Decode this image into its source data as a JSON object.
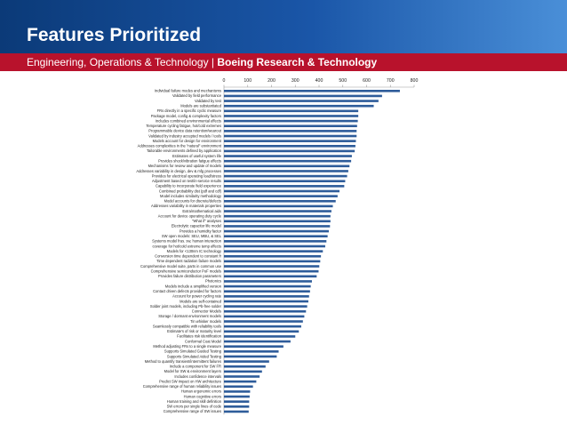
{
  "header": {
    "title": "Features Prioritized",
    "subtitle_prefix": "Engineering, Operations & Technology | ",
    "subtitle_bold": "Boeing Research & Technology"
  },
  "colors": {
    "bar": "#2e5c9a",
    "header_band": "#1a56a8",
    "subtitle_band": "#b8122c"
  },
  "chart_data": {
    "type": "bar",
    "orientation": "horizontal",
    "xlim": [
      0,
      800
    ],
    "x_ticks": [
      0,
      100,
      200,
      300,
      400,
      500,
      600,
      700,
      800
    ],
    "x_axis_position": "top",
    "grid": false,
    "legend": "none",
    "categories": [
      "Individual failure modes and mechanisms",
      "Validated by field performance",
      "Validated by test",
      "Models are substantiated",
      "FRs directly in a specific cyclic measure",
      "Package model, config & complexity factors",
      "Includes combined environmental effects",
      "Temperature cycling fatigue, hot/cold extremes",
      "Programmable device data retention/wearout",
      "Validated by industry accepted models / tools",
      "Models account for design for environment",
      "Addresses complexities in the \"natural\" environment",
      "Tailorable environments defined by application",
      "Estimates of useful system life",
      "Provides shock/vibration fatigue effects",
      "Mechanisms for review and update of models",
      "Addresses variability in design, dev & mfg processes",
      "Provides for electrical operating load/stress",
      "Adjustment based on test/in-service results",
      "Capability to incorporate field experience",
      "Combined probability dist (pdf and cdf)",
      "Model includes similarity methodology",
      "Model accounts for discrete/defects",
      "Addresses variability in materials properties",
      "Extra/mathematical aids",
      "Account for device operating duty cycle",
      "\"What if\" analyses",
      "Electrolytic capacitor life model",
      "Provides a humidity factor",
      "SW open models: SEU, MBU, & SEL",
      "Systems model fras. sw, human interaction",
      "coverage for hot/cold extreme temp effects",
      "Models for <130nm IC technology",
      "Conversion time dependent to constant fr",
      "Time dependent radiation failure models",
      "Comprehensive model suite, parts in common use",
      "Comprehensive semiconductor PoF models",
      "Provides failure distribution parameters",
      "Photonics",
      "Models include a simplified version",
      "Contact driven defects provided for factors",
      "Account for power cycling rate",
      "Models are self-contained",
      "Solder joint models, including Pb-free solder",
      "Connector Models",
      "Storage / dormant environment models",
      "Tin whisker models",
      "Seamlessly compatible with reliability tools",
      "Estimate's of risk or maturity level",
      "Facilitates risk identification",
      "Conformal Coat Model",
      "Method adjusting FRs to a single measure",
      "Supports Simulated Guided Testing",
      "Supports Simulated Aided Testing",
      "Method to quantify transient/intermittent failures",
      "Include a component for SW FR",
      "Model for SW & environment layers",
      "Includes confidence intervals",
      "Predict SW impact on HW architecture",
      "Comprehensive range of human reliability issues",
      "Human ergonomic errors",
      "Human cognitive errors",
      "Human training and skill definition",
      "SW errors per single lines of code",
      "Comprehensive range of SW issues"
    ],
    "values": [
      740,
      665,
      650,
      630,
      565,
      565,
      563,
      560,
      558,
      558,
      555,
      553,
      550,
      538,
      535,
      528,
      523,
      518,
      510,
      506,
      486,
      478,
      470,
      458,
      452,
      448,
      448,
      446,
      441,
      436,
      431,
      426,
      416,
      408,
      405,
      401,
      398,
      390,
      370,
      365,
      362,
      358,
      355,
      350,
      345,
      338,
      332,
      325,
      315,
      300,
      280,
      250,
      230,
      222,
      190,
      175,
      160,
      150,
      136,
      122,
      110,
      108,
      106,
      106,
      104
    ]
  }
}
